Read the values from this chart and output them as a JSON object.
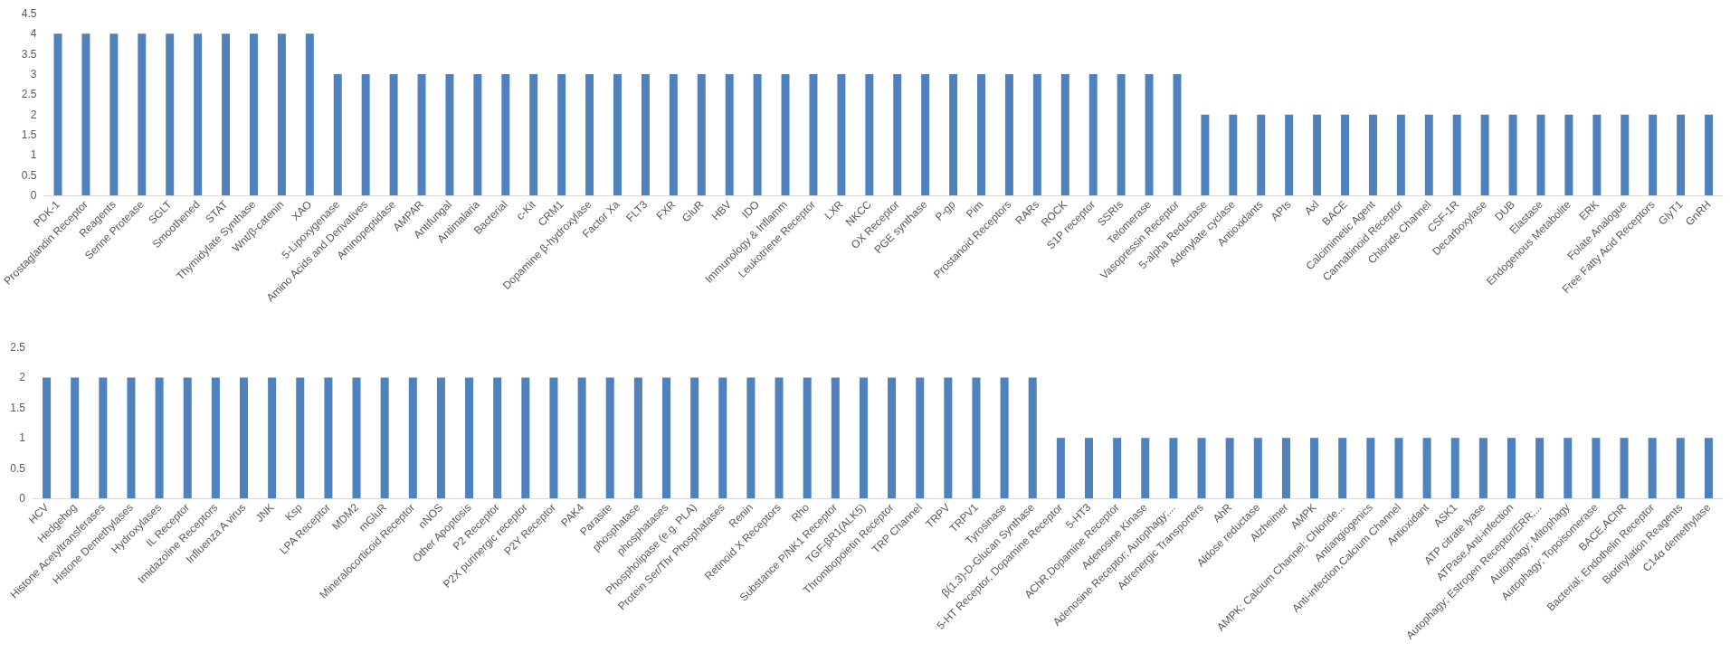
{
  "chart_data": [
    {
      "type": "bar",
      "categories": [
        "PDK-1",
        "Prostaglandin Receptor",
        "Reagents",
        "Serine Protease",
        "SGLT",
        "Smoothened",
        "STAT",
        "Thymidylate Synthase",
        "Wnt/β-catenin",
        "XAO",
        "5-Lipoxygenase",
        "Amino Acids and Derivatives",
        "Aminopeptidase",
        "AMPAR",
        "Antifungal",
        "Antimalaria",
        "Bacterial",
        "c-Kit",
        "CRM1",
        "Dopamine β-hydroxylase",
        "Factor Xa",
        "FLT3",
        "FXR",
        "GluR",
        "HBV",
        "IDO",
        "Immunology & Inflamm",
        "Leukotriene Receptor",
        "LXR",
        "NKCC",
        "OX Receptor",
        "PGE synthase",
        "P-gp",
        "Pim",
        "Prostanoid Receptors",
        "RARs",
        "ROCK",
        "S1P receptor",
        "SSRIs",
        "Telomerase",
        "Vasopressin Receptor",
        "5-alpha Reductase",
        "Adenylate cyclase",
        "Antioxidants",
        "APIs",
        "Axl",
        "BACE",
        "Calcimimetic Agent",
        "Cannabinoid Receptor",
        "Chloride Channel",
        "CSF-1R",
        "Decarboxylase",
        "DUB",
        "Elastase",
        "Endogenous Metabolite",
        "ERK",
        "Folate Analogue",
        "Free Fatty Acid Receptors",
        "GlyT1",
        "GnRH"
      ],
      "values": [
        4,
        4,
        4,
        4,
        4,
        4,
        4,
        4,
        4,
        4,
        3,
        3,
        3,
        3,
        3,
        3,
        3,
        3,
        3,
        3,
        3,
        3,
        3,
        3,
        3,
        3,
        3,
        3,
        3,
        3,
        3,
        3,
        3,
        3,
        3,
        3,
        3,
        3,
        3,
        3,
        3,
        2,
        2,
        2,
        2,
        2,
        2,
        2,
        2,
        2,
        2,
        2,
        2,
        2,
        2,
        2,
        2,
        2,
        2,
        2
      ],
      "color": "#4f81bd",
      "ylim": [
        0,
        4.5
      ],
      "yticks": [
        0,
        0.5,
        1,
        1.5,
        2,
        2.5,
        3,
        3.5,
        4,
        4.5
      ],
      "grid": false
    },
    {
      "type": "bar",
      "categories": [
        "HCV",
        "Hedgehog",
        "Histone Acetyltransferases",
        "Histone Demethylases",
        "Hydroxylases",
        "IL Receptor",
        "Imidazoline Receptors",
        "Influenza A virus",
        "JNK",
        "Ksp",
        "LPA Receptor",
        "MDM2",
        "mGluR",
        "Mineralocorticoid Receptor",
        "nNOS",
        "Other Apoptosis",
        "P2 Receptor",
        "P2X purinergic receptor",
        "P2Y Receptor",
        "PAK4",
        "Parasite",
        "phosphatase",
        "phosphatases",
        "Phospholipase (e.g. PLA)",
        "Protein Ser/Thr Phosphatases",
        "Renin",
        "Retinoid X Receptors",
        "Rho",
        "Substance P/NK1 Receptor",
        "TGF-βR1(ALK5)",
        "Thrombopoietin Receptor",
        "TRP Channel",
        "TRPV",
        "TRPV1",
        "Tyrosinase",
        "β(1,3)-D-Glucan Synthase",
        "5-HT Receptor, Dopamine Receptor",
        "5-HT3",
        "AChR,Dopamine Receptor",
        "Adenosine Kinase",
        "Adenosine Receptor; Autophagy;...",
        "Adrenergic Transporters",
        "AhR",
        "Aldose reductase",
        "Alzheimer",
        "AMPK",
        "AMPK; Calcium Channel; Chloride...",
        "Antiangiogenics",
        "Anti-infection,Calcium Channel",
        "Antioxidant",
        "ASK1",
        "ATP citrate lyase",
        "ATPase,Anti-infection",
        "Autophagy; Estrogen Receptor/ERR;...",
        "Autophagy; Mitophagy",
        "Autophagy; Topoisomerase",
        "BACE,AChR",
        "Bacterial; Endothelin Receptor",
        "Biotinylation Reagents",
        "C14α demethylase"
      ],
      "values": [
        2,
        2,
        2,
        2,
        2,
        2,
        2,
        2,
        2,
        2,
        2,
        2,
        2,
        2,
        2,
        2,
        2,
        2,
        2,
        2,
        2,
        2,
        2,
        2,
        2,
        2,
        2,
        2,
        2,
        2,
        2,
        2,
        2,
        2,
        2,
        2,
        1,
        1,
        1,
        1,
        1,
        1,
        1,
        1,
        1,
        1,
        1,
        1,
        1,
        1,
        1,
        1,
        1,
        1,
        1,
        1,
        1,
        1,
        1,
        1
      ],
      "color": "#4f81bd",
      "ylim": [
        0,
        2.5
      ],
      "yticks": [
        0,
        0.5,
        1,
        1.5,
        2,
        2.5
      ],
      "grid": false
    }
  ]
}
